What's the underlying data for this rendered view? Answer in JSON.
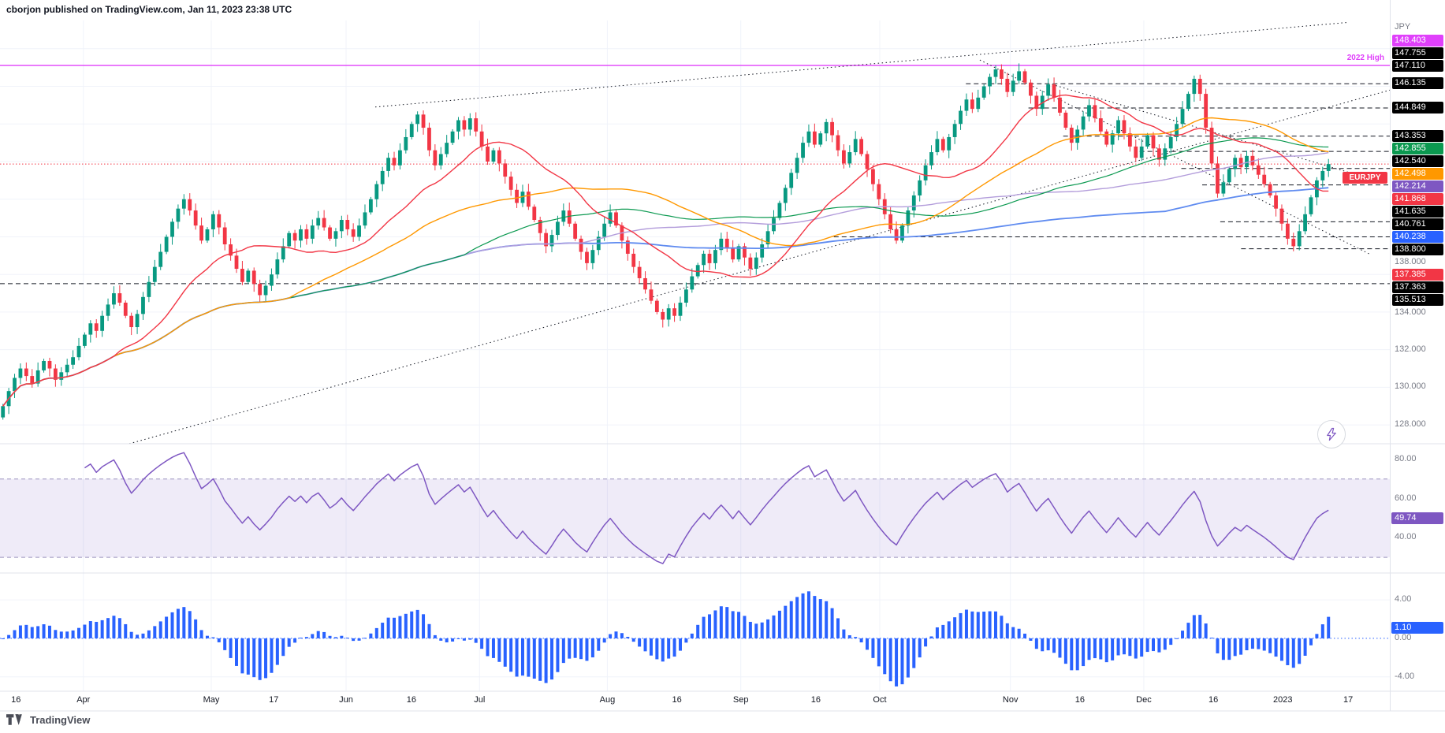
{
  "meta": {
    "attribution": "cborjon published on TradingView.com, Jan 11, 2023 23:38 UTC",
    "watermark": "TradingView",
    "symbol_label": "EURJPY"
  },
  "colors": {
    "up": "#089981",
    "down": "#f23645",
    "price_line": "#f23645",
    "magenta": "#e040fb",
    "rsi_line": "#7e57c2",
    "rsi_band_fill": "rgba(126,87,194,0.12)",
    "rsi_band_edge": "#9b93bd",
    "macd_bar": "#2962ff",
    "grid": "#f0f3fa",
    "separator": "#e0e3eb",
    "axis_text": "#787b86",
    "trendline": "#131722"
  },
  "annotations": {
    "high_2022": {
      "label": "2022 High",
      "price": 147.11
    }
  },
  "chart_data": {
    "type": "candlestick",
    "title": "EURJPY 1D with moving averages, RSI and MACD histogram",
    "symbol": "EURJPY",
    "timeframe": "1D",
    "x_range": [
      "2022-03-16",
      "2023-01-11"
    ],
    "ylim": [
      127.0,
      149.5
    ],
    "total_slots": 238,
    "last_price": 141.868,
    "closes": [
      129.0,
      129.8,
      130.5,
      131.0,
      130.6,
      130.2,
      130.9,
      131.4,
      131.0,
      130.4,
      130.8,
      131.2,
      131.6,
      132.2,
      132.8,
      133.4,
      133.0,
      133.8,
      134.4,
      135.0,
      134.5,
      133.8,
      133.2,
      133.9,
      134.8,
      135.6,
      136.4,
      137.2,
      138.0,
      138.8,
      139.5,
      140.0,
      139.4,
      138.6,
      137.8,
      138.4,
      139.2,
      138.5,
      137.6,
      137.0,
      136.3,
      135.6,
      136.2,
      135.5,
      134.9,
      135.4,
      136.0,
      136.8,
      137.5,
      138.2,
      137.8,
      138.4,
      137.9,
      138.6,
      139.0,
      138.5,
      137.9,
      138.3,
      138.9,
      138.4,
      138.0,
      138.6,
      139.3,
      140.0,
      140.8,
      141.5,
      142.2,
      141.8,
      142.6,
      143.3,
      144.0,
      144.5,
      143.8,
      142.6,
      141.8,
      142.4,
      143.0,
      143.6,
      144.2,
      143.7,
      144.3,
      143.6,
      142.8,
      142.0,
      142.6,
      141.9,
      141.2,
      140.5,
      139.8,
      140.4,
      139.6,
      138.9,
      138.2,
      137.5,
      138.1,
      138.8,
      139.4,
      138.7,
      137.9,
      137.2,
      136.6,
      137.3,
      138.0,
      138.7,
      139.3,
      138.6,
      137.8,
      137.1,
      136.4,
      135.8,
      135.2,
      134.6,
      134.0,
      133.6,
      134.2,
      133.8,
      134.5,
      135.2,
      135.9,
      136.5,
      137.1,
      136.6,
      137.3,
      137.9,
      137.4,
      136.8,
      137.5,
      136.9,
      136.3,
      136.9,
      137.6,
      138.3,
      139.0,
      139.8,
      140.6,
      141.4,
      142.2,
      143.0,
      143.6,
      142.9,
      143.5,
      144.1,
      143.4,
      142.6,
      141.9,
      142.5,
      143.2,
      142.4,
      141.6,
      140.8,
      140.0,
      139.2,
      138.4,
      137.8,
      138.6,
      139.4,
      140.2,
      141.0,
      141.8,
      142.5,
      143.2,
      142.6,
      143.3,
      144.0,
      144.7,
      145.3,
      144.8,
      145.4,
      146.0,
      146.5,
      146.9,
      146.4,
      145.7,
      146.3,
      146.8,
      146.2,
      145.5,
      144.8,
      145.5,
      146.1,
      145.4,
      144.6,
      143.8,
      143.0,
      143.7,
      144.4,
      145.0,
      144.3,
      143.6,
      142.9,
      143.5,
      144.2,
      143.5,
      142.8,
      142.2,
      142.8,
      143.4,
      142.7,
      142.1,
      142.7,
      143.3,
      144.0,
      144.8,
      145.6,
      146.4,
      145.6,
      143.8,
      141.9,
      140.3,
      140.9,
      141.6,
      142.2,
      141.7,
      142.3,
      141.8,
      141.3,
      140.8,
      140.2,
      139.5,
      138.7,
      137.9,
      137.5,
      138.3,
      139.2,
      140.1,
      141.0,
      141.5,
      141.868
    ],
    "moving_averages": [
      {
        "name": "sma-200",
        "period": 200,
        "color": "#5f8bf0",
        "width": 1.8,
        "last_label": "140.238"
      },
      {
        "name": "sma-100",
        "period": 100,
        "color": "#b39ddb",
        "width": 1.4,
        "last_label": "142.214"
      },
      {
        "name": "sma-80",
        "period": 80,
        "color": "#0b9950",
        "width": 1.2,
        "last_label": "142.855"
      },
      {
        "name": "sma-50",
        "period": 50,
        "color": "#ff9800",
        "width": 1.4,
        "last_label": "142.498"
      },
      {
        "name": "sma-20",
        "period": 20,
        "color": "#f23645",
        "width": 1.4,
        "last_label": ""
      }
    ],
    "levels": [
      {
        "name": "high-2022-line",
        "price": 147.11,
        "from": 0.0,
        "color": "#e040fb",
        "style": "solid"
      },
      {
        "name": "last-price-line",
        "price": 141.868,
        "from": 0.0,
        "color": "#f23645",
        "style": "dotted"
      },
      {
        "name": "support-135513",
        "price": 135.513,
        "from": 0.0,
        "color": "#131722",
        "style": "dashed"
      },
      {
        "name": "level-138000",
        "price": 138.0,
        "from": 0.6,
        "color": "#131722",
        "style": "dashed"
      },
      {
        "name": "level-146135",
        "price": 146.135,
        "from": 0.695,
        "color": "#131722",
        "style": "dashed"
      },
      {
        "name": "level-144849",
        "price": 144.849,
        "from": 0.74,
        "color": "#131722",
        "style": "dashed"
      },
      {
        "name": "level-143353",
        "price": 143.353,
        "from": 0.765,
        "color": "#131722",
        "style": "dashed"
      },
      {
        "name": "level-142540",
        "price": 142.54,
        "from": 0.82,
        "color": "#131722",
        "style": "dashed"
      },
      {
        "name": "level-141635",
        "price": 141.635,
        "from": 0.85,
        "color": "#131722",
        "style": "dashed"
      },
      {
        "name": "level-140761",
        "price": 140.761,
        "from": 0.865,
        "color": "#131722",
        "style": "dashed"
      },
      {
        "name": "level-138800",
        "price": 138.8,
        "from": 0.878,
        "color": "#131722",
        "style": "dashed"
      },
      {
        "name": "level-137363",
        "price": 137.363,
        "from": 0.893,
        "color": "#131722",
        "style": "dashed"
      }
    ],
    "trendlines": [
      {
        "name": "rising-support",
        "x1": 0.093,
        "p1": 127.0,
        "x2": 1.0,
        "p2": 145.8
      },
      {
        "name": "rising-resistance",
        "x1": 0.27,
        "p1": 144.9,
        "x2": 0.97,
        "p2": 149.4
      },
      {
        "name": "falling-from-high",
        "x1": 0.705,
        "p1": 147.4,
        "x2": 0.985,
        "p2": 137.1
      },
      {
        "name": "falling-secondary",
        "x1": 0.757,
        "p1": 146.1,
        "x2": 0.99,
        "p2": 141.0
      }
    ],
    "rsi": {
      "period": 14,
      "current": 49.74,
      "band": [
        30,
        70
      ],
      "scale_ticks": [
        {
          "label": "80.00",
          "value": 80
        },
        {
          "label": "60.00",
          "value": 60
        },
        {
          "label": "40.00",
          "value": 40
        }
      ]
    },
    "macd": {
      "fast": 12,
      "slow": 26,
      "signal": 9,
      "current_histogram": 1.1,
      "scale_ticks": [
        {
          "label": "4.00",
          "value": 4
        },
        {
          "label": "0.00",
          "value": 0
        },
        {
          "label": "-4.00",
          "value": -4
        }
      ]
    }
  },
  "price_scale": {
    "top_label": "JPY",
    "badges": [
      {
        "label": "148.403",
        "price": 148.403,
        "bg": "#e040fb"
      },
      {
        "label": "147.755",
        "price": 147.755,
        "bg": "#000000"
      },
      {
        "label": "147.110",
        "price": 147.11,
        "bg": "#000000"
      },
      {
        "label": "146.135",
        "price": 146.135,
        "bg": "#000000"
      },
      {
        "label": "144.849",
        "price": 144.849,
        "bg": "#000000"
      },
      {
        "label": "143.353",
        "price": 143.353,
        "bg": "#000000"
      },
      {
        "label": "142.855",
        "price": 142.855,
        "bg": "#0b9950"
      },
      {
        "label": "142.540",
        "price": 142.54,
        "bg": "#000000"
      },
      {
        "label": "142.498",
        "price": 142.498,
        "bg": "#ff9800"
      },
      {
        "label": "142.214",
        "price": 142.214,
        "bg": "#7e57c2"
      },
      {
        "label": "141.868",
        "price": 141.868,
        "bg": "#f23645"
      },
      {
        "label": "141.635",
        "price": 141.635,
        "bg": "#000000"
      },
      {
        "label": "140.761",
        "price": 140.761,
        "bg": "#000000"
      },
      {
        "label": "140.238",
        "price": 140.238,
        "bg": "#2962ff"
      },
      {
        "label": "138.800",
        "price": 138.8,
        "bg": "#000000"
      },
      {
        "label": "137.385",
        "price": 137.385,
        "bg": "#f23645"
      },
      {
        "label": "137.363",
        "price": 137.363,
        "bg": "#000000"
      },
      {
        "label": "135.513",
        "price": 135.513,
        "bg": "#000000"
      }
    ],
    "gray_ticks": [
      {
        "label": "138.000",
        "price": 138.0
      },
      {
        "label": "134.000",
        "price": 134.0
      },
      {
        "label": "132.000",
        "price": 132.0
      },
      {
        "label": "130.000",
        "price": 130.0
      },
      {
        "label": "128.000",
        "price": 128.0
      }
    ]
  },
  "time_scale": {
    "ticks": [
      {
        "label": "16",
        "f": 0.008
      },
      {
        "label": "Apr",
        "f": 0.06
      },
      {
        "label": "May",
        "f": 0.152
      },
      {
        "label": "17",
        "f": 0.197
      },
      {
        "label": "Jun",
        "f": 0.249
      },
      {
        "label": "16",
        "f": 0.296
      },
      {
        "label": "Jul",
        "f": 0.345
      },
      {
        "label": "Aug",
        "f": 0.437
      },
      {
        "label": "16",
        "f": 0.487
      },
      {
        "label": "Sep",
        "f": 0.533
      },
      {
        "label": "16",
        "f": 0.587
      },
      {
        "label": "Oct",
        "f": 0.633
      },
      {
        "label": "Nov",
        "f": 0.727
      },
      {
        "label": "16",
        "f": 0.777
      },
      {
        "label": "Dec",
        "f": 0.823
      },
      {
        "label": "16",
        "f": 0.873
      },
      {
        "label": "2023",
        "f": 0.923
      },
      {
        "label": "17",
        "f": 0.97
      }
    ]
  },
  "rsi_panel": {
    "badge": "49.74"
  },
  "macd_panel": {
    "badge": "1.10"
  }
}
